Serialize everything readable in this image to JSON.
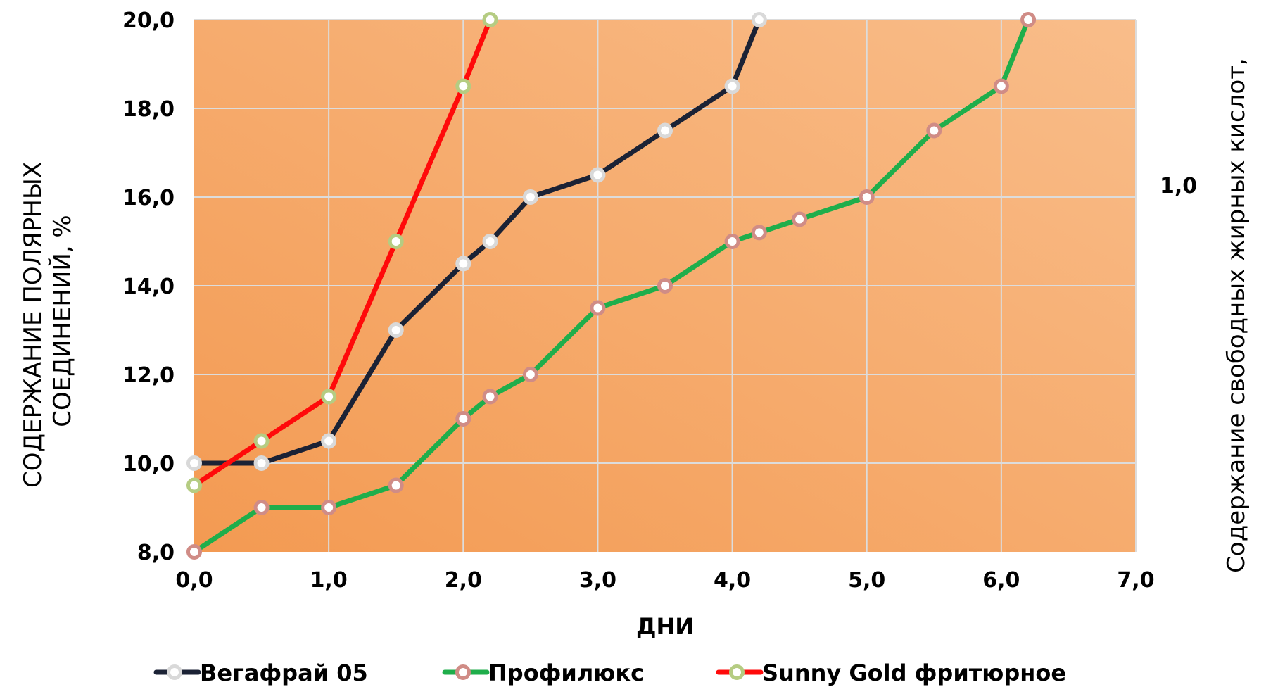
{
  "chart_data": {
    "type": "line",
    "title": "",
    "xlabel": "ДНИ",
    "ylabel": "СОДЕРЖАНИЕ ПОЛЯРНЫХ СОЕДИНЕНИЙ, %",
    "ylabel_lines": [
      "СОДЕРЖАНИЕ ПОЛЯРНЫХ",
      "СОЕДИНЕНИЙ, %"
    ],
    "y2label": "Содержание свободных жирных кислот,",
    "xlim": [
      0,
      7
    ],
    "ylim": [
      8,
      20
    ],
    "xticks": [
      "0,0",
      "1,0",
      "2,0",
      "3,0",
      "4,0",
      "5,0",
      "6,0",
      "7,0"
    ],
    "yticks": [
      "8,0",
      "10,0",
      "12,0",
      "14,0",
      "16,0",
      "18,0",
      "20,0"
    ],
    "y2ticks": [
      "1,0"
    ],
    "grid": true,
    "legend_position": "bottom",
    "plot_background": [
      "#f39a52",
      "#f9bd8a"
    ],
    "series": [
      {
        "name": "Вегафрай 05",
        "line_color": "#1b2235",
        "marker_color": "#d9d9d9",
        "points": [
          [
            0,
            10.0
          ],
          [
            0.5,
            10.0
          ],
          [
            1.0,
            10.5
          ],
          [
            1.5,
            13.0
          ],
          [
            2.0,
            14.5
          ],
          [
            2.2,
            15.0
          ],
          [
            2.5,
            16.0
          ],
          [
            3.0,
            16.5
          ],
          [
            3.5,
            17.5
          ],
          [
            4.0,
            18.5
          ],
          [
            4.2,
            20.0
          ]
        ]
      },
      {
        "name": "Профилюкс",
        "line_color": "#1fae4b",
        "marker_color": "#d08c86",
        "points": [
          [
            0,
            8.0
          ],
          [
            0.5,
            9.0
          ],
          [
            1.0,
            9.0
          ],
          [
            1.5,
            9.5
          ],
          [
            2.0,
            11.0
          ],
          [
            2.2,
            11.5
          ],
          [
            2.5,
            12.0
          ],
          [
            3.0,
            13.5
          ],
          [
            3.5,
            14.0
          ],
          [
            4.0,
            15.0
          ],
          [
            4.2,
            15.2
          ],
          [
            4.5,
            15.5
          ],
          [
            5.0,
            16.0
          ],
          [
            5.5,
            17.5
          ],
          [
            6.0,
            18.5
          ],
          [
            6.2,
            20.0
          ]
        ]
      },
      {
        "name": "Sunny Gold фритюрное",
        "line_color": "#ff0a0a",
        "marker_color": "#b5cc82",
        "points": [
          [
            0,
            9.5
          ],
          [
            0.5,
            10.5
          ],
          [
            1.0,
            11.5
          ],
          [
            1.5,
            15.0
          ],
          [
            2.0,
            18.5
          ],
          [
            2.2,
            20.0
          ]
        ]
      }
    ]
  }
}
